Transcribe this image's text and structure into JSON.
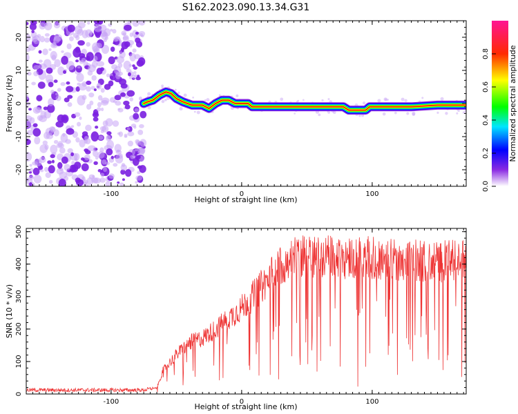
{
  "chart_data": [
    {
      "type": "heatmap",
      "title": "S162.2023.090.13.34.G31",
      "xlabel": "Height of straight line (km)",
      "ylabel": "Frequency (Hz)",
      "xlim": [
        -165,
        172
      ],
      "ylim": [
        -25,
        25
      ],
      "xticks": [
        -100,
        0,
        100
      ],
      "yticks": [
        20,
        10,
        0,
        -10,
        -20
      ],
      "colorbar": {
        "label": "Normalized spectral amplitude",
        "range": [
          0,
          1
        ],
        "ticks": [
          "0.0",
          "0.2",
          "0.4",
          "0.6",
          "0.8"
        ]
      },
      "noise_region_x": [
        -165,
        -75
      ],
      "ridge": [
        {
          "x": -75,
          "y": 0.0
        },
        {
          "x": -72,
          "y": 0.5
        },
        {
          "x": -68,
          "y": 1.0
        },
        {
          "x": -63,
          "y": 2.5
        },
        {
          "x": -58,
          "y": 3.5
        },
        {
          "x": -54,
          "y": 3.0
        },
        {
          "x": -50,
          "y": 1.5
        },
        {
          "x": -45,
          "y": 0.5
        },
        {
          "x": -38,
          "y": -0.5
        },
        {
          "x": -30,
          "y": -0.5
        },
        {
          "x": -25,
          "y": -1.5
        },
        {
          "x": -20,
          "y": 0.0
        },
        {
          "x": -15,
          "y": 1.0
        },
        {
          "x": -10,
          "y": 1.0
        },
        {
          "x": -5,
          "y": 0.0
        },
        {
          "x": 5,
          "y": 0.0
        },
        {
          "x": 8,
          "y": -1.0
        },
        {
          "x": 50,
          "y": -1.0
        },
        {
          "x": 78,
          "y": -1.0
        },
        {
          "x": 82,
          "y": -2.0
        },
        {
          "x": 95,
          "y": -2.0
        },
        {
          "x": 98,
          "y": -1.0
        },
        {
          "x": 130,
          "y": -1.0
        },
        {
          "x": 150,
          "y": -0.5
        },
        {
          "x": 172,
          "y": -0.5
        }
      ]
    },
    {
      "type": "line",
      "xlabel": "Height of straight line (km)",
      "ylabel": "SNR (10 * v/v)",
      "xlim": [
        -165,
        172
      ],
      "ylim": [
        0,
        510
      ],
      "xticks": [
        -100,
        0,
        100
      ],
      "yticks": [
        0,
        100,
        200,
        300,
        400,
        500
      ],
      "color": "#ee3333",
      "envelope": [
        {
          "x": -165,
          "y": 12
        },
        {
          "x": -75,
          "y": 12
        },
        {
          "x": -65,
          "y": 20
        },
        {
          "x": -60,
          "y": 80
        },
        {
          "x": -50,
          "y": 130
        },
        {
          "x": -40,
          "y": 170
        },
        {
          "x": -30,
          "y": 185
        },
        {
          "x": -20,
          "y": 215
        },
        {
          "x": -10,
          "y": 250
        },
        {
          "x": 0,
          "y": 285
        },
        {
          "x": 10,
          "y": 330
        },
        {
          "x": 20,
          "y": 380
        },
        {
          "x": 30,
          "y": 430
        },
        {
          "x": 40,
          "y": 455
        },
        {
          "x": 60,
          "y": 455
        },
        {
          "x": 100,
          "y": 450
        },
        {
          "x": 140,
          "y": 440
        },
        {
          "x": 172,
          "y": 440
        }
      ]
    }
  ]
}
